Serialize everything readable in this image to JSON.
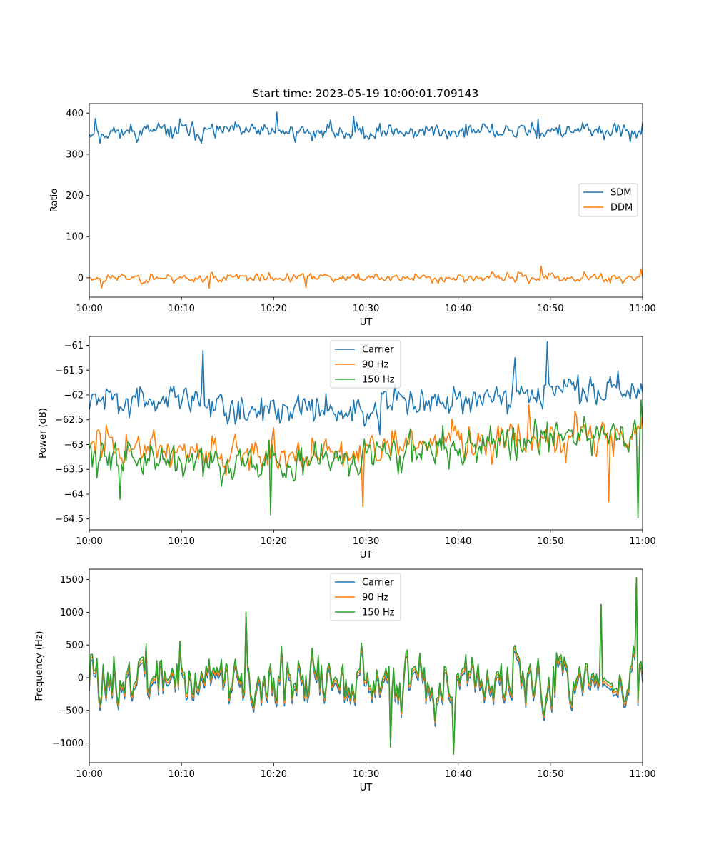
{
  "chart_data": [
    {
      "type": "line",
      "title": "Start time: 2023-05-19 10:00:01.709143",
      "xlabel": "UT",
      "ylabel": "Ratio",
      "xlim": [
        "10:00",
        "11:00"
      ],
      "ylim": [
        -47,
        423
      ],
      "x_ticks": [
        "10:00",
        "10:10",
        "10:20",
        "10:30",
        "10:40",
        "10:50",
        "11:00"
      ],
      "y_ticks": [
        0,
        100,
        200,
        300,
        400
      ],
      "legend": "center-right",
      "series": [
        {
          "name": "SDM",
          "color": "#1f77b4",
          "mean": 355,
          "spread": 18,
          "seed": 11,
          "spikes": [
            [
              20.3,
              402
            ],
            [
              28.6,
              392
            ],
            [
              0.6,
              387
            ],
            [
              9.8,
              386
            ],
            [
              48.6,
              386
            ],
            [
              1.2,
              327
            ]
          ]
        },
        {
          "name": "DDM",
          "color": "#ff7f0e",
          "mean": 0,
          "spread": 10,
          "seed": 23,
          "spikes": [
            [
              49.0,
              28
            ],
            [
              59.9,
              22
            ],
            [
              1.4,
              -25
            ],
            [
              13.0,
              -25
            ],
            [
              23.5,
              -24
            ]
          ]
        }
      ]
    },
    {
      "type": "line",
      "title": "",
      "xlabel": "UT",
      "ylabel": "Power (dB)",
      "xlim": [
        "10:00",
        "11:00"
      ],
      "ylim": [
        -64.72,
        -60.82
      ],
      "x_ticks": [
        "10:00",
        "10:10",
        "10:20",
        "10:30",
        "10:40",
        "10:50",
        "11:00"
      ],
      "y_ticks": [
        -61.0,
        -61.5,
        -62.0,
        -62.5,
        -63.0,
        -63.5,
        -64.0,
        -64.5
      ],
      "legend": "upper-center",
      "series": [
        {
          "name": "Carrier",
          "color": "#1f77b4",
          "mean": -62.15,
          "trend": [
            -62.1,
            -62.1,
            -62.3,
            -62.25,
            -62.1,
            -61.9,
            -61.9
          ],
          "spread": 0.28,
          "seed": 31,
          "spikes": [
            [
              49.6,
              -60.93
            ],
            [
              12.3,
              -61.1
            ],
            [
              46.1,
              -61.25
            ],
            [
              31.5,
              -62.8
            ]
          ]
        },
        {
          "name": "90 Hz",
          "color": "#ff7f0e",
          "mean": -63.05,
          "trend": [
            -63.0,
            -63.1,
            -63.2,
            -63.1,
            -62.95,
            -62.8,
            -62.8
          ],
          "spread": 0.32,
          "seed": 47,
          "spikes": [
            [
              47.6,
              -62.2
            ],
            [
              56.3,
              -64.15
            ],
            [
              29.6,
              -64.25
            ],
            [
              1.8,
              -62.6
            ]
          ]
        },
        {
          "name": "150 Hz",
          "color": "#2ca02c",
          "mean": -63.15,
          "trend": [
            -63.2,
            -63.25,
            -63.35,
            -63.2,
            -63.0,
            -62.85,
            -62.8
          ],
          "spread": 0.34,
          "seed": 59,
          "spikes": [
            [
              59.5,
              -64.48
            ],
            [
              19.6,
              -64.42
            ],
            [
              59.8,
              -62.1
            ],
            [
              3.3,
              -64.1
            ]
          ]
        }
      ]
    },
    {
      "type": "line",
      "title": "",
      "xlabel": "UT",
      "ylabel": "Frequency (Hz)",
      "xlim": [
        "10:00",
        "11:00"
      ],
      "ylim": [
        -1300,
        1660
      ],
      "x_ticks": [
        "10:00",
        "10:10",
        "10:20",
        "10:30",
        "10:40",
        "10:50",
        "11:00"
      ],
      "y_ticks": [
        1500,
        1000,
        500,
        0,
        -500,
        -1000
      ],
      "legend": "upper-center",
      "series": [
        {
          "name": "Carrier",
          "color": "#1f77b4",
          "mean": 0,
          "spread": 380,
          "offset": -90,
          "seed": 73,
          "spikes": [
            [
              59.4,
              1530
            ],
            [
              39.5,
              -1170
            ],
            [
              32.6,
              -1060
            ],
            [
              55.5,
              1120
            ],
            [
              17.0,
              1000
            ]
          ]
        },
        {
          "name": "90 Hz",
          "color": "#ff7f0e",
          "mean": 0,
          "spread": 380,
          "offset": -45,
          "seed": 73,
          "spikes": [
            [
              59.4,
              1530
            ],
            [
              39.5,
              -1170
            ],
            [
              32.6,
              -1060
            ],
            [
              55.5,
              1120
            ],
            [
              17.0,
              1000
            ]
          ]
        },
        {
          "name": "150 Hz",
          "color": "#2ca02c",
          "mean": 0,
          "spread": 380,
          "offset": 0,
          "seed": 73,
          "spikes": [
            [
              59.4,
              1530
            ],
            [
              39.5,
              -1170
            ],
            [
              32.6,
              -1060
            ],
            [
              55.5,
              1120
            ],
            [
              17.0,
              1000
            ]
          ]
        }
      ]
    }
  ]
}
